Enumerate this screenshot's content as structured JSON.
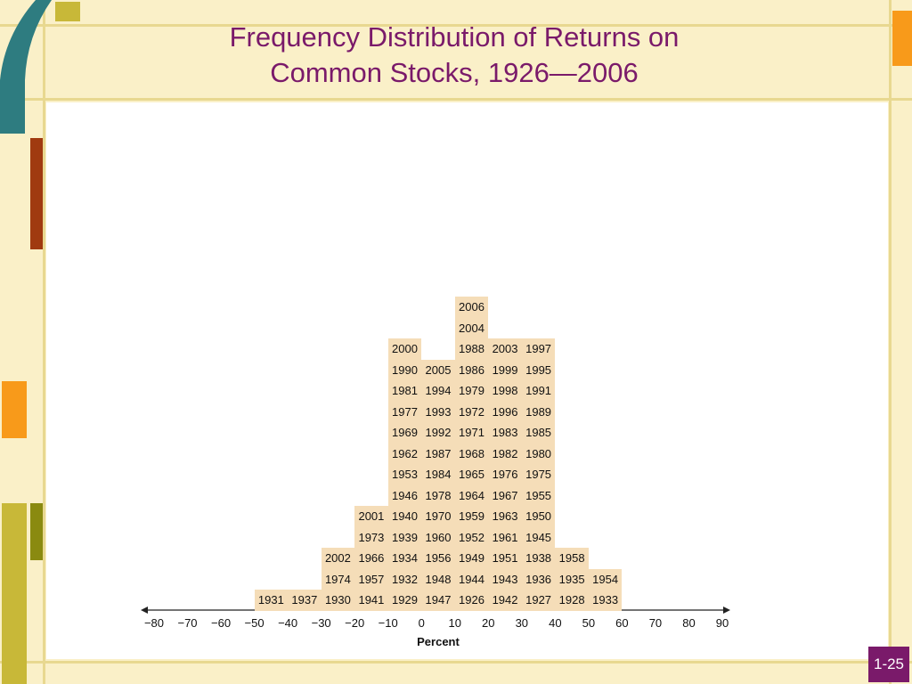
{
  "header": {
    "title_line1": "Frequency Distribution of Returns on",
    "title_line2": "Common Stocks, 1926—2006"
  },
  "footer": {
    "page_label": "1-25"
  },
  "colors": {
    "background": "#faf0c8",
    "title": "#7a1a6a",
    "cell": "#f5ddb8",
    "deco_teal": "#2e7c80",
    "deco_rust": "#a03a10",
    "deco_orange": "#f89a1a",
    "deco_olive": "#8a8a10",
    "deco_yellowgreen": "#c8b838"
  },
  "chart_data": {
    "type": "bar",
    "xlabel": "Percent",
    "x_ticks": [
      "−80",
      "−70",
      "−60",
      "−50",
      "−40",
      "−30",
      "−20",
      "−10",
      "0",
      "10",
      "20",
      "30",
      "40",
      "50",
      "60",
      "70",
      "80",
      "90"
    ],
    "xlim": [
      -80,
      90
    ],
    "bins": [
      {
        "range": [
          -50,
          -40
        ],
        "years": [
          "1931"
        ]
      },
      {
        "range": [
          -40,
          -30
        ],
        "years": [
          "1937"
        ]
      },
      {
        "range": [
          -30,
          -20
        ],
        "years": [
          "1930",
          "1974",
          "2002"
        ]
      },
      {
        "range": [
          -20,
          -10
        ],
        "years": [
          "1941",
          "1957",
          "1966",
          "1973",
          "2001"
        ]
      },
      {
        "range": [
          -10,
          0
        ],
        "years": [
          "1929",
          "1932",
          "1934",
          "1939",
          "1940",
          "1946",
          "1953",
          "1962",
          "1969",
          "1977",
          "1981",
          "1990",
          "2000"
        ]
      },
      {
        "range": [
          0,
          10
        ],
        "years": [
          "1947",
          "1948",
          "1956",
          "1960",
          "1970",
          "1978",
          "1984",
          "1987",
          "1992",
          "1993",
          "1994",
          "2005"
        ]
      },
      {
        "range": [
          10,
          20
        ],
        "years": [
          "1926",
          "1944",
          "1949",
          "1952",
          "1959",
          "1964",
          "1965",
          "1968",
          "1971",
          "1972",
          "1979",
          "1986",
          "1988",
          "2004",
          "2006"
        ]
      },
      {
        "range": [
          20,
          30
        ],
        "years": [
          "1942",
          "1943",
          "1951",
          "1961",
          "1963",
          "1967",
          "1976",
          "1982",
          "1983",
          "1996",
          "1998",
          "1999",
          "2003"
        ]
      },
      {
        "range": [
          30,
          40
        ],
        "years": [
          "1927",
          "1936",
          "1938",
          "1945",
          "1950",
          "1955",
          "1975",
          "1980",
          "1985",
          "1989",
          "1991",
          "1995",
          "1997"
        ]
      },
      {
        "range": [
          40,
          50
        ],
        "years": [
          "1928",
          "1935",
          "1958"
        ]
      },
      {
        "range": [
          50,
          60
        ],
        "years": [
          "1933",
          "1954"
        ]
      }
    ]
  }
}
